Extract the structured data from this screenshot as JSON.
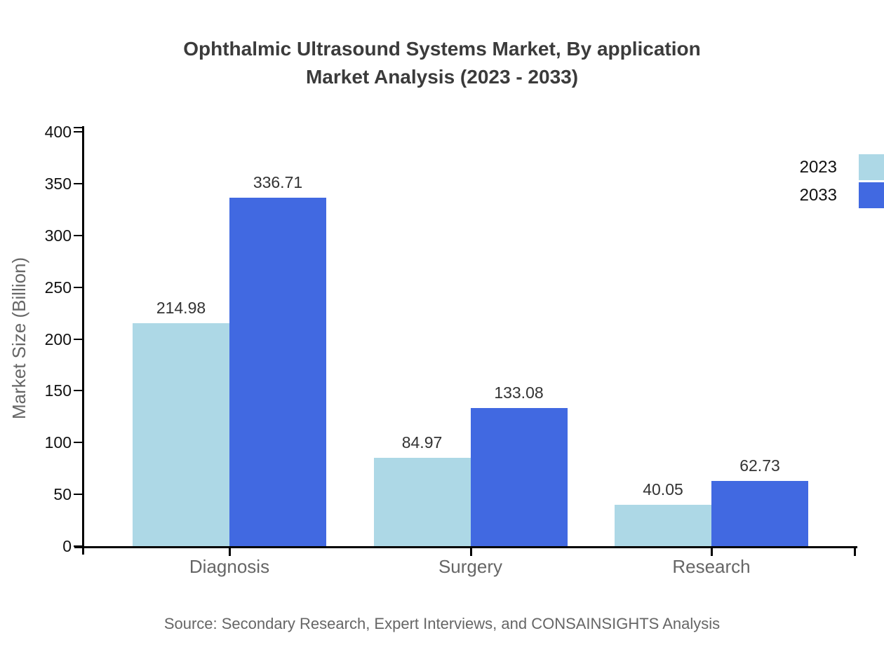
{
  "chart": {
    "title_line1": "Ophthalmic Ultrasound Systems Market, By application",
    "title_line2": "Market Analysis (2023 - 2033)",
    "ylabel": "Market Size (Billion)",
    "source": "Source: Secondary Research, Expert Interviews, and CONSAINSIGHTS Analysis"
  },
  "chart_data": {
    "type": "bar",
    "title": "Ophthalmic Ultrasound Systems Market, By application Market Analysis (2023 - 2033)",
    "categories": [
      "Diagnosis",
      "Surgery",
      "Research"
    ],
    "series": [
      {
        "name": "2023",
        "color": "#ADD8E6",
        "values": [
          214.98,
          84.97,
          40.05
        ]
      },
      {
        "name": "2033",
        "color": "#4169E1",
        "values": [
          336.71,
          133.08,
          62.73
        ]
      }
    ],
    "xlabel": "",
    "ylabel": "Market Size (Billion)",
    "ylim": [
      0,
      400
    ],
    "yticks": [
      0,
      50,
      100,
      150,
      200,
      250,
      300,
      350,
      400
    ],
    "grid": false,
    "legend_position": "upper right",
    "value_labels": true,
    "value_label_decimals": 2,
    "axis_color": "#000000",
    "background_color": "#FFFFFF"
  }
}
